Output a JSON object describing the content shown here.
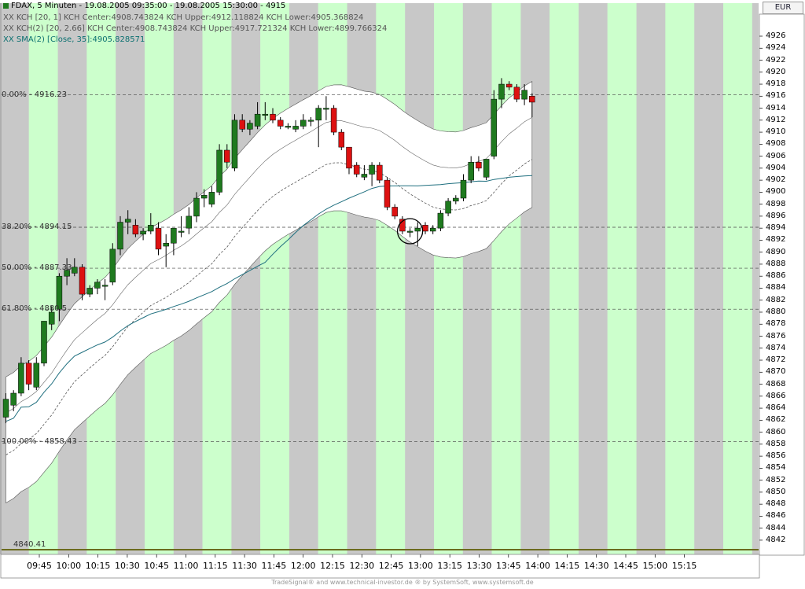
{
  "header": {
    "title": "FDAX, 5 Minuten - 19.08.2005 09:35:00 - 19.08.2005 15:30:00 - 4915",
    "kch1": "KCH [20, 1] KCH Center:4908.743824 KCH Upper:4912.118824 KCH Lower:4905.368824",
    "kch2": "KCH(2) [20, 2.66] KCH Center:4908.743824 KCH Upper:4917.721324 KCH Lower:4899.766324",
    "sma": "SMA(2) [Close, 35]:4905.828571",
    "marker": "XX"
  },
  "currency": "EUR",
  "fib_levels": [
    {
      "label": "0.00% - 4916.23",
      "value": 4916.23
    },
    {
      "label": "38.20% - 4894.15",
      "value": 4894.15
    },
    {
      "label": "50.00% - 4887.33",
      "value": 4887.33
    },
    {
      "label": "61.80% - 4880.5",
      "value": 4880.5
    },
    {
      "label": "100.00% - 4858.43",
      "value": 4858.43
    }
  ],
  "low_line": {
    "label": "4840.41",
    "value": 4840.41
  },
  "footer": "TradeSignal® and www.technical-investor.de ® by  SystemSoft, www.systemsoft.de",
  "colors": {
    "band_green": "#ccffcc",
    "band_gray": "#c8c8c8",
    "up_candle": "#1f7a1f",
    "down_candle": "#dd1111",
    "channel_fill": "#ffffff",
    "sma_line": "#1f6f7f",
    "low_line": "#6b6b1e"
  },
  "chart_data": {
    "type": "candlestick",
    "title": "FDAX, 5 Minuten - 19.08.2005 09:35:00 - 19.08.2005 15:30:00 - 4915",
    "ylim": [
      4840,
      4928
    ],
    "y_ticks": [
      "4926",
      "4924",
      "4922",
      "4920",
      "4918",
      "4916",
      "4914",
      "4912",
      "4910",
      "4908",
      "4906",
      "4904",
      "4902",
      "4900",
      "4898",
      "4896",
      "4894",
      "4892",
      "4890",
      "4888",
      "4886",
      "4884",
      "4882",
      "4880",
      "4878",
      "4876",
      "4874",
      "4872",
      "4870",
      "4868",
      "4866",
      "4864",
      "4862",
      "4860",
      "4858",
      "4856",
      "4854",
      "4852",
      "4850",
      "4848",
      "4846",
      "4844",
      "4842"
    ],
    "x_ticks": [
      "09:45",
      "10:00",
      "10:15",
      "10:30",
      "10:45",
      "11:00",
      "11:15",
      "11:30",
      "11:45",
      "12:00",
      "12:15",
      "12:30",
      "12:45",
      "13:00",
      "13:15",
      "13:30",
      "13:45",
      "14:00",
      "14:15",
      "14:30",
      "14:45",
      "15:00",
      "15:15"
    ],
    "candles": [
      {
        "o": 4862.5,
        "h": 4866.5,
        "l": 4861.5,
        "c": 4865.5
      },
      {
        "o": 4864.5,
        "h": 4867,
        "l": 4863.5,
        "c": 4866.5
      },
      {
        "o": 4866.5,
        "h": 4872.5,
        "l": 4866,
        "c": 4871.5
      },
      {
        "o": 4871.5,
        "h": 4872,
        "l": 4867,
        "c": 4868
      },
      {
        "o": 4867.5,
        "h": 4872.5,
        "l": 4867,
        "c": 4871.5
      },
      {
        "o": 4871.5,
        "h": 4878.5,
        "l": 4871,
        "c": 4878.5
      },
      {
        "o": 4878,
        "h": 4881,
        "l": 4877,
        "c": 4880
      },
      {
        "o": 4880.5,
        "h": 4886.5,
        "l": 4878.5,
        "c": 4886
      },
      {
        "o": 4886,
        "h": 4889,
        "l": 4884.5,
        "c": 4887
      },
      {
        "o": 4886.5,
        "h": 4889,
        "l": 4886,
        "c": 4887.5
      },
      {
        "o": 4887.5,
        "h": 4888,
        "l": 4882,
        "c": 4883
      },
      {
        "o": 4883,
        "h": 4884.5,
        "l": 4882.5,
        "c": 4884
      },
      {
        "o": 4884,
        "h": 4885.5,
        "l": 4883,
        "c": 4885
      },
      {
        "o": 4884.5,
        "h": 4885.5,
        "l": 4882,
        "c": 4884.5
      },
      {
        "o": 4885,
        "h": 4891.5,
        "l": 4884.5,
        "c": 4890.5
      },
      {
        "o": 4890.5,
        "h": 4896,
        "l": 4889.5,
        "c": 4895
      },
      {
        "o": 4895,
        "h": 4897,
        "l": 4893,
        "c": 4895.5
      },
      {
        "o": 4894.5,
        "h": 4895.5,
        "l": 4892.5,
        "c": 4893
      },
      {
        "o": 4893,
        "h": 4894,
        "l": 4892,
        "c": 4893.5
      },
      {
        "o": 4893.5,
        "h": 4896.5,
        "l": 4893,
        "c": 4894.5
      },
      {
        "o": 4894,
        "h": 4895,
        "l": 4889.5,
        "c": 4890.5
      },
      {
        "o": 4891,
        "h": 4893,
        "l": 4887.5,
        "c": 4891.5
      },
      {
        "o": 4891.5,
        "h": 4894,
        "l": 4889.5,
        "c": 4894
      },
      {
        "o": 4893.5,
        "h": 4896,
        "l": 4892.5,
        "c": 4893.5
      },
      {
        "o": 4894,
        "h": 4897.5,
        "l": 4893,
        "c": 4896
      },
      {
        "o": 4896,
        "h": 4900,
        "l": 4895,
        "c": 4899
      },
      {
        "o": 4899,
        "h": 4900.5,
        "l": 4897.5,
        "c": 4899.5
      },
      {
        "o": 4898,
        "h": 4901,
        "l": 4897.5,
        "c": 4900
      },
      {
        "o": 4900,
        "h": 4908,
        "l": 4899.5,
        "c": 4907
      },
      {
        "o": 4907,
        "h": 4908,
        "l": 4904,
        "c": 4905
      },
      {
        "o": 4904,
        "h": 4913,
        "l": 4903.5,
        "c": 4912
      },
      {
        "o": 4912,
        "h": 4913,
        "l": 4910,
        "c": 4910.5
      },
      {
        "o": 4910.5,
        "h": 4912,
        "l": 4909.5,
        "c": 4911.5
      },
      {
        "o": 4911,
        "h": 4915,
        "l": 4910.5,
        "c": 4913
      },
      {
        "o": 4913,
        "h": 4915,
        "l": 4912,
        "c": 4913
      },
      {
        "o": 4913,
        "h": 4914,
        "l": 4911.5,
        "c": 4912
      },
      {
        "o": 4912,
        "h": 4912.5,
        "l": 4910.5,
        "c": 4911
      },
      {
        "o": 4911,
        "h": 4911.5,
        "l": 4910.5,
        "c": 4911
      },
      {
        "o": 4910.5,
        "h": 4912,
        "l": 4910,
        "c": 4911
      },
      {
        "o": 4911,
        "h": 4913,
        "l": 4910.5,
        "c": 4912
      },
      {
        "o": 4912,
        "h": 4912.5,
        "l": 4911,
        "c": 4912
      },
      {
        "o": 4912,
        "h": 4914.5,
        "l": 4907.5,
        "c": 4914
      },
      {
        "o": 4914,
        "h": 4916,
        "l": 4912,
        "c": 4914
      },
      {
        "o": 4914,
        "h": 4914.5,
        "l": 4909.5,
        "c": 4910
      },
      {
        "o": 4910,
        "h": 4910.5,
        "l": 4907,
        "c": 4907.5
      },
      {
        "o": 4907.5,
        "h": 4907.5,
        "l": 4903,
        "c": 4904
      },
      {
        "o": 4904.5,
        "h": 4905,
        "l": 4902.5,
        "c": 4903
      },
      {
        "o": 4902.5,
        "h": 4904.5,
        "l": 4902,
        "c": 4903
      },
      {
        "o": 4903,
        "h": 4905,
        "l": 4901,
        "c": 4904.5
      },
      {
        "o": 4904.5,
        "h": 4905,
        "l": 4901.5,
        "c": 4902
      },
      {
        "o": 4902,
        "h": 4902.5,
        "l": 4897,
        "c": 4897.5
      },
      {
        "o": 4897.5,
        "h": 4898,
        "l": 4895.5,
        "c": 4896
      },
      {
        "o": 4895.5,
        "h": 4896,
        "l": 4893,
        "c": 4893.5
      },
      {
        "o": 4893.5,
        "h": 4894,
        "l": 4892.5,
        "c": 4893.5
      },
      {
        "o": 4893.5,
        "h": 4895,
        "l": 4891,
        "c": 4894
      },
      {
        "o": 4894.5,
        "h": 4895,
        "l": 4893,
        "c": 4893.5
      },
      {
        "o": 4893.5,
        "h": 4894.5,
        "l": 4893,
        "c": 4894
      },
      {
        "o": 4894,
        "h": 4897,
        "l": 4893.5,
        "c": 4896.5
      },
      {
        "o": 4896.5,
        "h": 4899,
        "l": 4896,
        "c": 4898.5
      },
      {
        "o": 4898.5,
        "h": 4899.5,
        "l": 4898,
        "c": 4899
      },
      {
        "o": 4899,
        "h": 4903,
        "l": 4898.5,
        "c": 4902
      },
      {
        "o": 4902,
        "h": 4906,
        "l": 4901.5,
        "c": 4905
      },
      {
        "o": 4905,
        "h": 4906,
        "l": 4903.5,
        "c": 4904
      },
      {
        "o": 4902.5,
        "h": 4905.5,
        "l": 4902,
        "c": 4905.5
      },
      {
        "o": 4906,
        "h": 4917,
        "l": 4905.5,
        "c": 4915.5
      },
      {
        "o": 4915.5,
        "h": 4919,
        "l": 4914,
        "c": 4918
      },
      {
        "o": 4918,
        "h": 4918.5,
        "l": 4917,
        "c": 4917.5
      },
      {
        "o": 4917.5,
        "h": 4918,
        "l": 4915,
        "c": 4915.5
      },
      {
        "o": 4915.5,
        "h": 4918,
        "l": 4914.5,
        "c": 4917
      },
      {
        "o": 4916,
        "h": 4916.5,
        "l": 4912.5,
        "c": 4915
      }
    ],
    "marked_candle": 53
  }
}
